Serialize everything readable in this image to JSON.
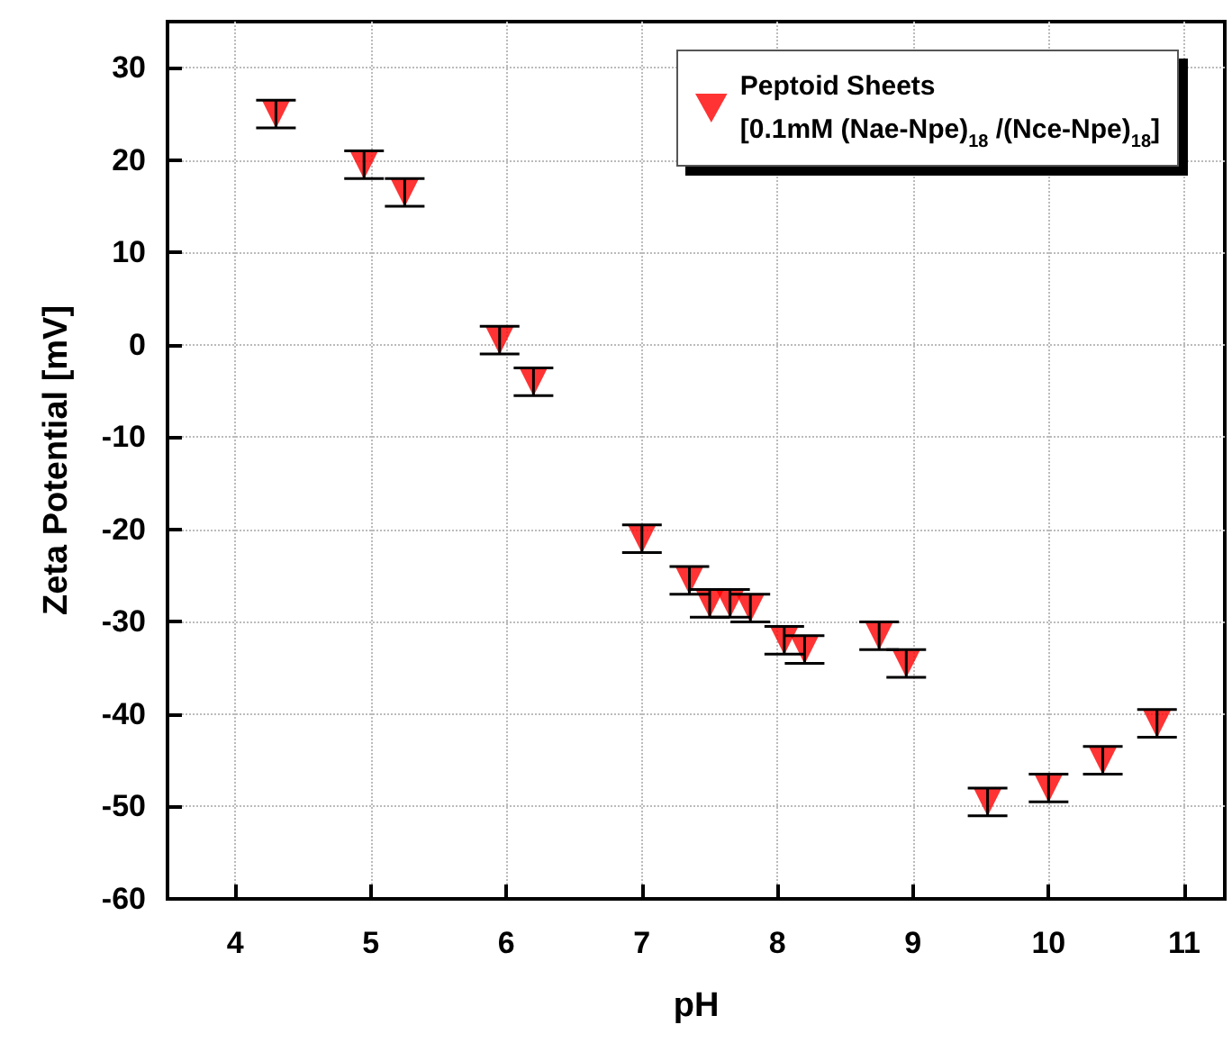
{
  "chart_data": {
    "type": "scatter",
    "xlabel": "pH",
    "ylabel": "Zeta Potential [mV]",
    "x": [
      4.3,
      4.95,
      5.25,
      5.95,
      6.2,
      7.0,
      7.35,
      7.5,
      7.65,
      7.8,
      8.05,
      8.2,
      8.75,
      8.95,
      9.55,
      10.0,
      10.4,
      10.8
    ],
    "series": [
      {
        "name": "Peptoid Sheets\n[0.1mM (Nae-Npe)$_{18}$ /(Nce-Npe)$_{18}$]",
        "color": "#ff0000",
        "values": [
          25,
          19.5,
          16.5,
          0.5,
          -4,
          -21,
          -25.5,
          -28,
          -28,
          -28.5,
          -32,
          -33,
          -31.5,
          -34.5,
          -49.5,
          -48,
          -45,
          -41
        ],
        "errors": [
          1.5,
          1.5,
          1.5,
          1.5,
          1.5,
          1.5,
          1.5,
          1.5,
          1.5,
          1.5,
          1.5,
          1.5,
          1.5,
          1.5,
          1.5,
          1.5,
          1.5,
          1.5
        ]
      }
    ],
    "xlim": [
      3.5,
      11.3
    ],
    "xticks": [
      4,
      5,
      6,
      7,
      8,
      9,
      10,
      11
    ],
    "ylim": [
      -60,
      35
    ],
    "yticks": [
      -60,
      -50,
      -40,
      -30,
      -20,
      -10,
      0,
      10,
      20,
      30
    ],
    "grid": true,
    "legend": "top right",
    "marker": "triangle"
  }
}
